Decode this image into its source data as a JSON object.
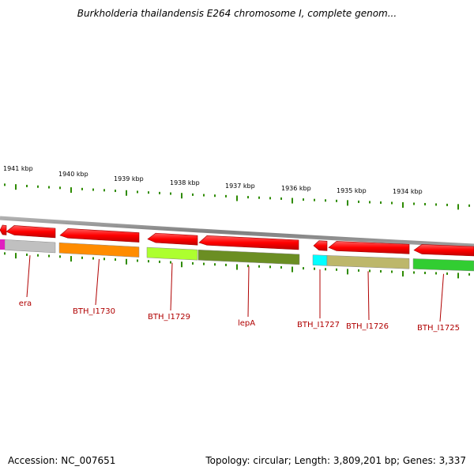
{
  "title": "Burkholderia thailandensis E264 chromosome I, complete genom...",
  "footer": {
    "accession": "Accession: NC_007651",
    "summary": "Topology: circular; Length: 3,809,201 bp; Genes: 3,337"
  },
  "scale": {
    "ticks": [
      "1941 kbp",
      "1940 kbp",
      "1939 kbp",
      "1938 kbp",
      "1937 kbp",
      "1936 kbp",
      "1935 kbp",
      "1934 kbp"
    ]
  },
  "genes": [
    {
      "label": "era",
      "color": "#c0c0c0"
    },
    {
      "label": "BTH_I1730",
      "color": "#ff8c00"
    },
    {
      "label": "BTH_I1729",
      "color": "#adff2f"
    },
    {
      "label": "lepA",
      "color": "#6b8e23"
    },
    {
      "label": "BTH_I1727",
      "color": "#00ffff"
    },
    {
      "label": "BTH_I1726",
      "color": "#bdb76b"
    },
    {
      "label": "BTH_I1725",
      "color": "#32cd32"
    }
  ],
  "colors": {
    "cds_arrow": "#ff0000",
    "backbone": "#808080",
    "tick": "#2e8b00",
    "label": "#b00000"
  }
}
